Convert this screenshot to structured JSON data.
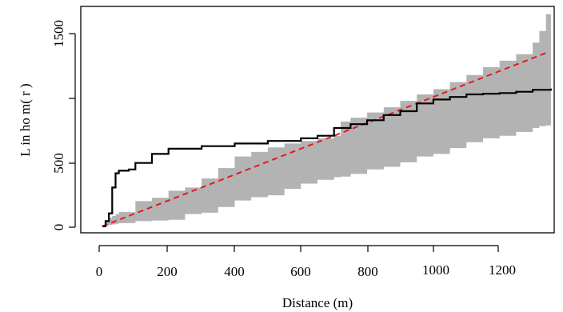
{
  "chart_data": {
    "type": "line",
    "title": "",
    "xlabel": "Distance (m)",
    "ylabel": "L  in ho m( r )",
    "xlim": [
      -65,
      1365
    ],
    "ylim": [
      -50,
      1700
    ],
    "x_ticks": [
      0,
      200,
      400,
      600,
      800,
      1000,
      1200
    ],
    "x_tick_labels": [
      "0",
      "200",
      "400",
      "600",
      "800",
      "1000",
      "1200"
    ],
    "y_ticks": [
      0,
      500,
      1000,
      1500
    ],
    "y_tick_labels": [
      "0",
      "500",
      "",
      "1500"
    ],
    "grid": false,
    "legend": "none",
    "colors": {
      "envelope": "#b3b3b3",
      "observed": "#000000",
      "theoretical": "#e41a1c"
    },
    "envelope": {
      "x": [
        0,
        10,
        20,
        30,
        40,
        50,
        100,
        150,
        200,
        250,
        300,
        350,
        400,
        450,
        500,
        550,
        600,
        650,
        700,
        720,
        750,
        800,
        850,
        900,
        950,
        1000,
        1050,
        1100,
        1150,
        1200,
        1250,
        1300,
        1320,
        1340,
        1355
      ],
      "lower": [
        0,
        5,
        10,
        15,
        20,
        25,
        40,
        45,
        50,
        95,
        105,
        150,
        200,
        225,
        240,
        290,
        330,
        360,
        380,
        385,
        405,
        440,
        460,
        495,
        540,
        560,
        605,
        650,
        680,
        700,
        730,
        760,
        775,
        780,
        790
      ],
      "upper": [
        0,
        40,
        65,
        80,
        95,
        110,
        195,
        220,
        275,
        300,
        370,
        450,
        540,
        575,
        610,
        640,
        660,
        680,
        700,
        810,
        840,
        880,
        920,
        970,
        1020,
        1060,
        1115,
        1170,
        1230,
        1280,
        1330,
        1420,
        1510,
        1640,
        1650
      ]
    },
    "series": [
      {
        "x": [
          0,
          10,
          20,
          30,
          40,
          50,
          80,
          100,
          150,
          200,
          300,
          400,
          500,
          600,
          650,
          700,
          750,
          800,
          850,
          900,
          950,
          1000,
          1050,
          1100,
          1150,
          1200,
          1250,
          1300,
          1355
        ],
        "y": [
          0,
          40,
          100,
          300,
          410,
          430,
          440,
          490,
          560,
          600,
          620,
          640,
          660,
          680,
          700,
          760,
          790,
          820,
          860,
          890,
          950,
          980,
          1000,
          1020,
          1025,
          1030,
          1040,
          1055,
          1065
        ]
      },
      {
        "x": [
          0,
          1340
        ],
        "y": [
          0,
          1340
        ]
      }
    ]
  }
}
